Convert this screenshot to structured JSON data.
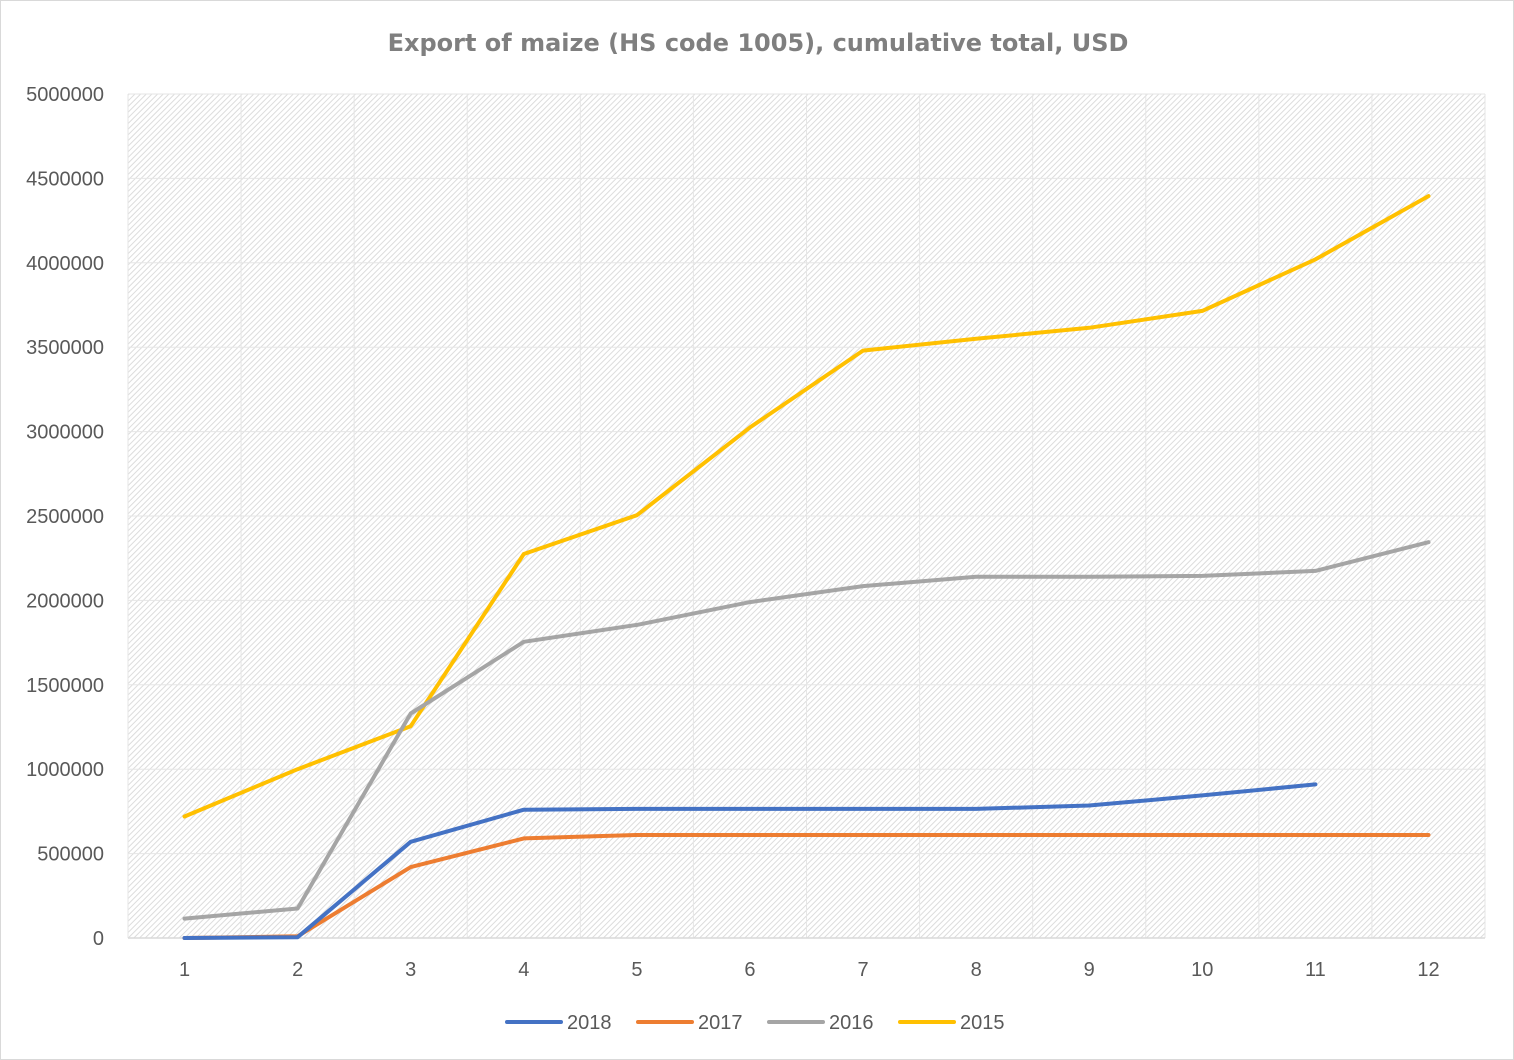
{
  "chart_data": {
    "type": "line",
    "title": "Export of maize (HS code 1005), cumulative total, USD",
    "xlabel": "",
    "ylabel": "",
    "x": [
      1,
      2,
      3,
      4,
      5,
      6,
      7,
      8,
      9,
      10,
      11,
      12
    ],
    "x_tick_labels": [
      "1",
      "2",
      "3",
      "4",
      "5",
      "6",
      "7",
      "8",
      "9",
      "10",
      "11",
      "12"
    ],
    "ylim": [
      0,
      5000000
    ],
    "y_tick_labels": [
      "0",
      "500000",
      "1000000",
      "1500000",
      "2000000",
      "2500000",
      "3000000",
      "3500000",
      "4000000",
      "4500000",
      "5000000"
    ],
    "grid": true,
    "legend_position": "bottom",
    "series": [
      {
        "name": "2018",
        "color": "#4472c4",
        "values": [
          0,
          5000,
          570000,
          760000,
          765000,
          765000,
          765000,
          765000,
          785000,
          845000,
          910000,
          null
        ]
      },
      {
        "name": "2017",
        "color": "#ed7d31",
        "values": [
          0,
          10000,
          420000,
          590000,
          610000,
          610000,
          610000,
          610000,
          610000,
          610000,
          610000,
          610000
        ]
      },
      {
        "name": "2016",
        "color": "#a5a5a5",
        "values": [
          115000,
          175000,
          1330000,
          1755000,
          1855000,
          1990000,
          2085000,
          2140000,
          2140000,
          2145000,
          2175000,
          2345000
        ]
      },
      {
        "name": "2015",
        "color": "#ffc000",
        "values": [
          720000,
          1000000,
          1255000,
          2275000,
          2505000,
          3025000,
          3480000,
          3550000,
          3615000,
          3715000,
          4020000,
          4395000
        ]
      }
    ]
  }
}
